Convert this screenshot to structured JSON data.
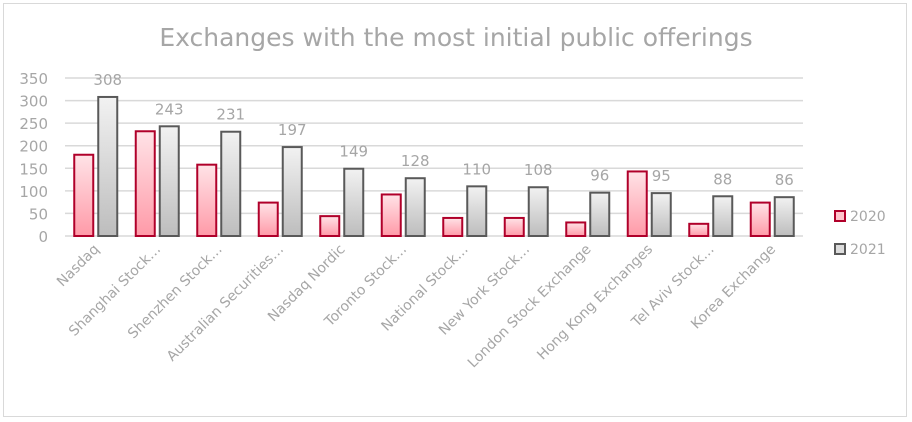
{
  "chart_data": {
    "type": "bar",
    "title": "Exchanges with the most initial public offerings",
    "xlabel": "",
    "ylabel": "",
    "ylim": [
      0,
      350
    ],
    "yticks": [
      0,
      50,
      100,
      150,
      200,
      250,
      300,
      350
    ],
    "grid": true,
    "legend_position": "right",
    "categories": [
      "Nasdaq",
      "Shanghai Stock…",
      "Shenzhen Stock…",
      "Australian Securities…",
      "Nasdaq Nordic",
      "Toronto Stock…",
      "National Stock…",
      "New York Stock…",
      "London Stock Exchange",
      "Hong Kong Exchanges",
      "Tel Aviv Stock…",
      "Korea Exchange"
    ],
    "series": [
      {
        "name": "2020",
        "values": [
          180,
          232,
          158,
          74,
          44,
          92,
          40,
          40,
          30,
          143,
          27,
          74
        ],
        "color": "#b0002a",
        "fill": "#ffc4cc",
        "labels_shown": false
      },
      {
        "name": "2021",
        "values": [
          308,
          243,
          231,
          197,
          149,
          128,
          110,
          108,
          96,
          95,
          88,
          86
        ],
        "color": "#595959",
        "fill": "#dcdcdc",
        "labels_shown": true
      }
    ]
  }
}
